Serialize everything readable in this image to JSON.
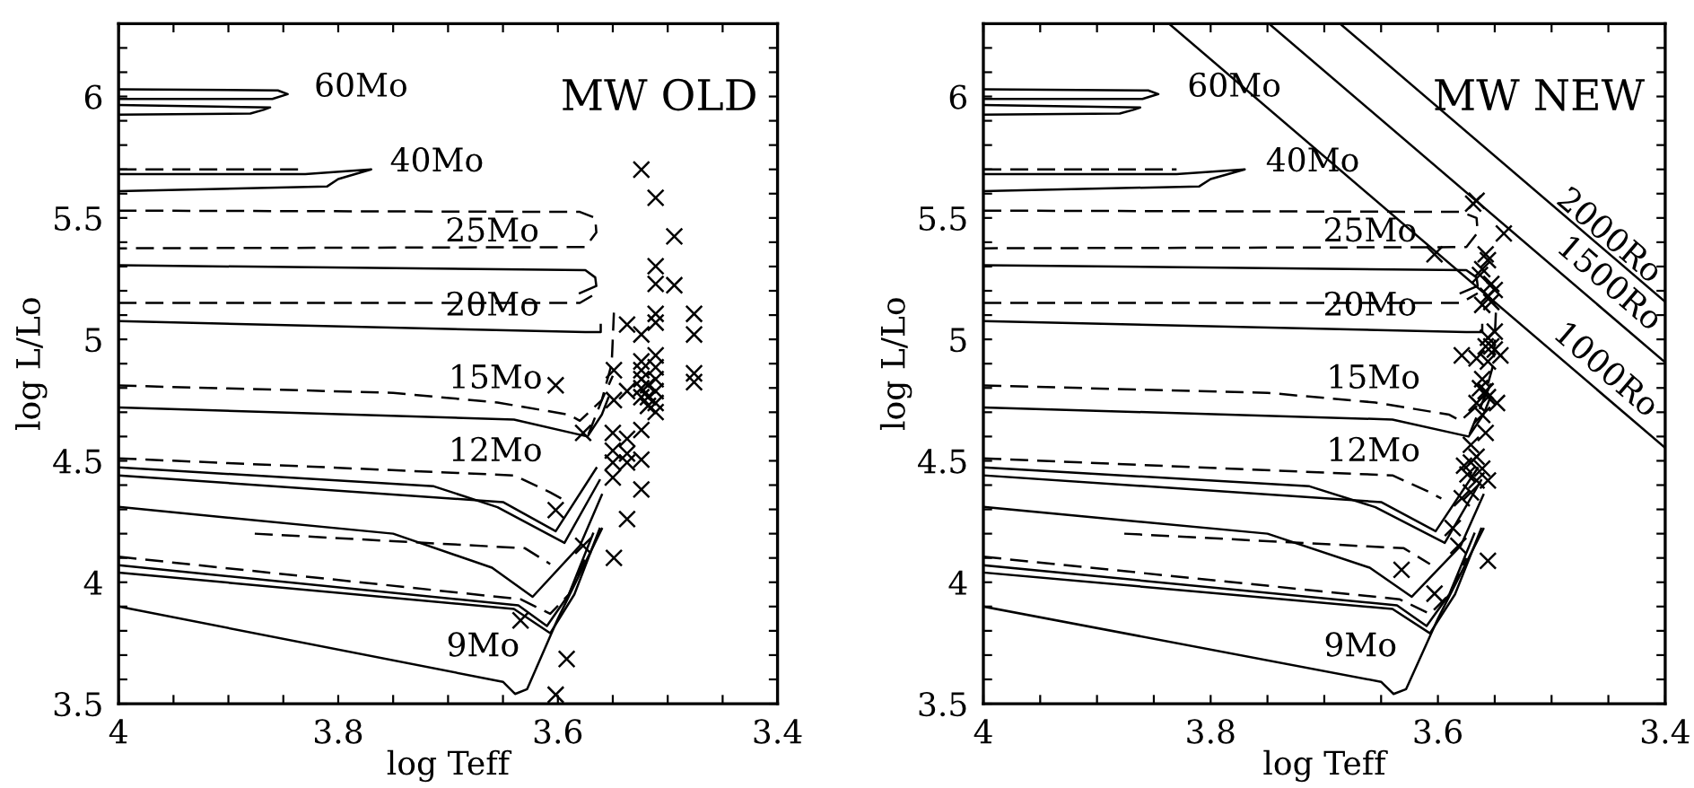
{
  "chart_data": [
    {
      "type": "line",
      "xlabel": "log Teff",
      "ylabel": "log L/Lo",
      "xlim": [
        4,
        3.4
      ],
      "ylim": [
        3.5,
        6.3
      ],
      "xticks": [
        4,
        {
          "value": 3.95,
          "label": null
        },
        {
          "value": 3.9,
          "label": null
        },
        {
          "value": 3.85,
          "label": null
        },
        3.8,
        {
          "value": 3.75,
          "label": null
        },
        {
          "value": 3.7,
          "label": null
        },
        {
          "value": 3.65,
          "label": null
        },
        3.6,
        {
          "value": 3.55,
          "label": null
        },
        {
          "value": 3.5,
          "label": null
        },
        {
          "value": 3.45,
          "label": null
        },
        3.4
      ],
      "yticks": [
        3.5,
        {
          "value": 3.6,
          "label": null
        },
        {
          "value": 3.7,
          "label": null
        },
        {
          "value": 3.8,
          "label": null
        },
        {
          "value": 3.9,
          "label": null
        },
        4,
        {
          "value": 4.1,
          "label": null
        },
        {
          "value": 4.2,
          "label": null
        },
        {
          "value": 4.3,
          "label": null
        },
        {
          "value": 4.4,
          "label": null
        },
        4.5,
        {
          "value": 4.6,
          "label": null
        },
        {
          "value": 4.7,
          "label": null
        },
        {
          "value": 4.8,
          "label": null
        },
        {
          "value": 4.9,
          "label": null
        },
        5,
        {
          "value": 5.1,
          "label": null
        },
        {
          "value": 5.2,
          "label": null
        },
        {
          "value": 5.3,
          "label": null
        },
        {
          "value": 5.4,
          "label": null
        },
        5.5,
        {
          "value": 5.6,
          "label": null
        },
        {
          "value": 5.7,
          "label": null
        },
        {
          "value": 5.8,
          "label": null
        },
        {
          "value": 5.9,
          "label": null
        },
        6,
        {
          "value": 6.1,
          "label": null
        },
        {
          "value": 6.2,
          "label": null
        }
      ],
      "grid": false,
      "legend": false,
      "annotations": [
        "MW OLD",
        "60Mo",
        "40Mo",
        "25Mo",
        "20Mo",
        "15Mo",
        "12Mo",
        "9Mo"
      ],
      "series": [
        {
          "type": "line",
          "line_style": "solid",
          "color": "#000000",
          "x": [
            4,
            3.855,
            3.846,
            3.86,
            4
          ],
          "values": [
            6.03,
            6.025,
            6.01,
            5.99,
            5.99
          ]
        },
        {
          "type": "line",
          "line_style": "solid",
          "color": "#000000",
          "x": [
            4,
            3.862,
            3.868,
            3.88,
            4
          ],
          "values": [
            5.965,
            5.955,
            5.945,
            5.93,
            5.925
          ]
        },
        {
          "type": "line",
          "line_style": "solid",
          "color": "#000000",
          "x": [
            4,
            3.83,
            3.77,
            3.8,
            3.81,
            4
          ],
          "values": [
            5.68,
            5.68,
            5.7,
            5.66,
            5.63,
            5.61
          ]
        },
        {
          "type": "line",
          "line_style": "dashed",
          "color": "#000000",
          "x": [
            4,
            3.83
          ],
          "values": [
            5.7,
            5.7
          ]
        },
        {
          "type": "line",
          "line_style": "dashed",
          "color": "#000000",
          "x": [
            4,
            3.58,
            3.566,
            3.565,
            3.575,
            4
          ],
          "values": [
            5.53,
            5.525,
            5.5,
            5.44,
            5.38,
            5.375
          ]
        },
        {
          "type": "line",
          "line_style": "solid",
          "color": "#000000",
          "x": [
            4,
            3.575,
            3.566,
            3.565,
            3.58
          ],
          "values": [
            5.305,
            5.285,
            5.255,
            5.22,
            5.19
          ]
        },
        {
          "type": "line",
          "line_style": "dashed",
          "color": "#000000",
          "x": [
            4,
            3.58,
            3.565
          ],
          "values": [
            5.15,
            5.15,
            5.19
          ]
        },
        {
          "type": "line",
          "line_style": "solid",
          "color": "#000000",
          "x": [
            4,
            3.575,
            3.561,
            3.561
          ],
          "values": [
            5.075,
            5.03,
            5.03,
            5.06
          ]
        },
        {
          "type": "line",
          "line_style": "dashed",
          "color": "#000000",
          "x": [
            3.549,
            3.551,
            3.56,
            3.573
          ],
          "values": [
            5.11,
            4.9,
            4.75,
            4.6
          ]
        },
        {
          "type": "line",
          "line_style": "dashed",
          "color": "#000000",
          "x": [
            4,
            3.75,
            3.655,
            3.59,
            3.58,
            3.56,
            3.55
          ],
          "values": [
            4.81,
            4.78,
            4.74,
            4.69,
            4.665,
            4.75,
            4.85
          ]
        },
        {
          "type": "line",
          "line_style": "solid",
          "color": "#000000",
          "x": [
            4,
            3.64,
            3.573,
            3.56,
            3.554
          ],
          "values": [
            4.72,
            4.67,
            4.6,
            4.69,
            4.76
          ]
        },
        {
          "type": "line",
          "line_style": "dashed",
          "color": "#000000",
          "x": [
            4,
            3.64,
            3.607,
            3.597
          ],
          "values": [
            4.51,
            4.44,
            4.37,
            4.345
          ]
        },
        {
          "type": "line",
          "line_style": "solid",
          "color": "#000000",
          "x": [
            4,
            3.713,
            3.655,
            3.594,
            3.562
          ],
          "values": [
            4.473,
            4.395,
            4.309,
            4.162,
            4.42
          ]
        },
        {
          "type": "line",
          "line_style": "solid",
          "color": "#000000",
          "x": [
            4,
            3.65,
            3.602,
            3.565
          ],
          "values": [
            4.44,
            4.33,
            4.21,
            4.47
          ]
        },
        {
          "type": "line",
          "line_style": "solid",
          "color": "#000000",
          "x": [
            4,
            3.75,
            3.66,
            3.623,
            3.58,
            3.56
          ],
          "values": [
            4.31,
            4.2,
            4.06,
            3.94,
            4.15,
            4.36
          ]
        },
        {
          "type": "line",
          "line_style": "dashed",
          "color": "#000000",
          "x": [
            3.876,
            3.63,
            3.607
          ],
          "values": [
            4.2,
            4.14,
            4.075
          ]
        },
        {
          "type": "line",
          "line_style": "dashed",
          "color": "#000000",
          "x": [
            4,
            3.634,
            3.607,
            3.59,
            3.575
          ],
          "values": [
            4.105,
            3.93,
            3.87,
            3.95,
            4.1
          ]
        },
        {
          "type": "line",
          "line_style": "solid",
          "color": "#000000",
          "x": [
            4,
            3.636,
            3.61,
            3.59,
            3.568
          ],
          "values": [
            4.07,
            3.905,
            3.82,
            3.95,
            4.2
          ]
        },
        {
          "type": "line",
          "line_style": "solid",
          "color": "#000000",
          "x": [
            4,
            3.64,
            3.607,
            3.585,
            3.562
          ],
          "values": [
            4.04,
            3.89,
            3.79,
            3.95,
            4.22
          ]
        },
        {
          "type": "line",
          "line_style": "solid",
          "color": "#000000",
          "x": [
            4,
            3.65,
            3.639,
            3.628,
            3.6,
            3.56
          ],
          "values": [
            3.9,
            3.59,
            3.54,
            3.56,
            3.85,
            4.22
          ]
        },
        {
          "type": "scatter",
          "marker": "cross",
          "color": "#000000",
          "x": [
            3.524,
            3.511,
            3.494,
            3.511,
            3.511,
            3.494,
            3.511,
            3.511,
            3.476,
            3.476,
            3.537,
            3.524,
            3.476,
            3.476,
            3.524,
            3.524,
            3.524,
            3.524,
            3.524,
            3.511,
            3.511,
            3.511,
            3.511,
            3.511,
            3.511,
            3.518,
            3.518,
            3.518,
            3.537,
            3.549,
            3.549,
            3.55,
            3.537,
            3.524,
            3.524,
            3.55,
            3.55,
            3.55,
            3.537,
            3.537,
            3.524,
            3.537,
            3.549,
            3.602,
            3.602,
            3.577,
            3.634,
            3.592,
            3.602,
            3.577
          ],
          "values": [
            5.699,
            5.583,
            5.424,
            5.301,
            5.228,
            5.223,
            5.105,
            5.069,
            5.105,
            5.02,
            5.061,
            5.02,
            4.86,
            4.824,
            4.909,
            4.873,
            4.836,
            4.799,
            4.762,
            4.934,
            4.885,
            4.836,
            4.787,
            4.738,
            4.701,
            4.811,
            4.762,
            4.726,
            4.787,
            4.873,
            4.75,
            4.615,
            4.591,
            4.627,
            4.505,
            4.542,
            4.493,
            4.431,
            4.493,
            4.53,
            4.382,
            4.26,
            4.1,
            4.811,
            4.297,
            4.15,
            3.843,
            3.684,
            3.537,
            4.615
          ]
        }
      ]
    },
    {
      "type": "line",
      "xlabel": "log Teff",
      "ylabel": "log L/Lo",
      "xlim": [
        4,
        3.4
      ],
      "ylim": [
        3.5,
        6.3
      ],
      "xticks": [
        4,
        {
          "value": 3.95,
          "label": null
        },
        {
          "value": 3.9,
          "label": null
        },
        {
          "value": 3.85,
          "label": null
        },
        3.8,
        {
          "value": 3.75,
          "label": null
        },
        {
          "value": 3.7,
          "label": null
        },
        {
          "value": 3.65,
          "label": null
        },
        3.6,
        {
          "value": 3.55,
          "label": null
        },
        {
          "value": 3.5,
          "label": null
        },
        {
          "value": 3.45,
          "label": null
        },
        3.4
      ],
      "yticks": [
        3.5,
        {
          "value": 3.6,
          "label": null
        },
        {
          "value": 3.7,
          "label": null
        },
        {
          "value": 3.8,
          "label": null
        },
        {
          "value": 3.9,
          "label": null
        },
        4,
        {
          "value": 4.1,
          "label": null
        },
        {
          "value": 4.2,
          "label": null
        },
        {
          "value": 4.3,
          "label": null
        },
        {
          "value": 4.4,
          "label": null
        },
        4.5,
        {
          "value": 4.6,
          "label": null
        },
        {
          "value": 4.7,
          "label": null
        },
        {
          "value": 4.8,
          "label": null
        },
        {
          "value": 4.9,
          "label": null
        },
        5,
        {
          "value": 5.1,
          "label": null
        },
        {
          "value": 5.2,
          "label": null
        },
        {
          "value": 5.3,
          "label": null
        },
        {
          "value": 5.4,
          "label": null
        },
        5.5,
        {
          "value": 5.6,
          "label": null
        },
        {
          "value": 5.7,
          "label": null
        },
        {
          "value": 5.8,
          "label": null
        },
        {
          "value": 5.9,
          "label": null
        },
        6,
        {
          "value": 6.1,
          "label": null
        },
        {
          "value": 6.2,
          "label": null
        }
      ],
      "grid": false,
      "legend": false,
      "annotations": [
        "MW NEW",
        "60Mo",
        "40Mo",
        "25Mo",
        "20Mo",
        "15Mo",
        "12Mo",
        "9Mo",
        "2000Ro",
        "1500Ro",
        "1000Ro"
      ],
      "series": [
        {
          "type": "line",
          "line_style": "solid",
          "color": "#000000",
          "x": [
            4,
            3.855,
            3.846,
            3.86,
            4
          ],
          "values": [
            6.03,
            6.025,
            6.01,
            5.99,
            5.99
          ]
        },
        {
          "type": "line",
          "line_style": "solid",
          "color": "#000000",
          "x": [
            4,
            3.862,
            3.868,
            3.88,
            4
          ],
          "values": [
            5.965,
            5.955,
            5.945,
            5.93,
            5.925
          ]
        },
        {
          "type": "line",
          "line_style": "solid",
          "color": "#000000",
          "x": [
            4,
            3.83,
            3.77,
            3.8,
            3.81,
            4
          ],
          "values": [
            5.68,
            5.68,
            5.7,
            5.66,
            5.63,
            5.61
          ]
        },
        {
          "type": "line",
          "line_style": "dashed",
          "color": "#000000",
          "x": [
            4,
            3.83
          ],
          "values": [
            5.7,
            5.7
          ]
        },
        {
          "type": "line",
          "line_style": "dashed",
          "color": "#000000",
          "x": [
            4,
            3.58,
            3.566,
            3.565,
            3.575,
            4
          ],
          "values": [
            5.53,
            5.525,
            5.5,
            5.44,
            5.38,
            5.375
          ]
        },
        {
          "type": "line",
          "line_style": "solid",
          "color": "#000000",
          "x": [
            4,
            3.575,
            3.566,
            3.565,
            3.58
          ],
          "values": [
            5.305,
            5.285,
            5.255,
            5.22,
            5.19
          ]
        },
        {
          "type": "line",
          "line_style": "dashed",
          "color": "#000000",
          "x": [
            4,
            3.58,
            3.565
          ],
          "values": [
            5.15,
            5.15,
            5.19
          ]
        },
        {
          "type": "line",
          "line_style": "solid",
          "color": "#000000",
          "x": [
            4,
            3.575,
            3.561,
            3.561
          ],
          "values": [
            5.075,
            5.03,
            5.03,
            5.06
          ]
        },
        {
          "type": "line",
          "line_style": "dashed",
          "color": "#000000",
          "x": [
            3.549,
            3.551,
            3.56,
            3.573
          ],
          "values": [
            5.11,
            4.9,
            4.75,
            4.6
          ]
        },
        {
          "type": "line",
          "line_style": "dashed",
          "color": "#000000",
          "x": [
            4,
            3.75,
            3.655,
            3.59,
            3.58,
            3.56,
            3.55
          ],
          "values": [
            4.81,
            4.78,
            4.74,
            4.69,
            4.665,
            4.75,
            4.85
          ]
        },
        {
          "type": "line",
          "line_style": "solid",
          "color": "#000000",
          "x": [
            4,
            3.64,
            3.573,
            3.56,
            3.554
          ],
          "values": [
            4.72,
            4.67,
            4.6,
            4.69,
            4.76
          ]
        },
        {
          "type": "line",
          "line_style": "dashed",
          "color": "#000000",
          "x": [
            4,
            3.64,
            3.607,
            3.597
          ],
          "values": [
            4.51,
            4.44,
            4.37,
            4.345
          ]
        },
        {
          "type": "line",
          "line_style": "solid",
          "color": "#000000",
          "x": [
            4,
            3.713,
            3.655,
            3.594,
            3.562
          ],
          "values": [
            4.473,
            4.395,
            4.309,
            4.162,
            4.42
          ]
        },
        {
          "type": "line",
          "line_style": "solid",
          "color": "#000000",
          "x": [
            4,
            3.65,
            3.602,
            3.565
          ],
          "values": [
            4.44,
            4.33,
            4.21,
            4.47
          ]
        },
        {
          "type": "line",
          "line_style": "solid",
          "color": "#000000",
          "x": [
            4,
            3.75,
            3.66,
            3.623,
            3.58,
            3.56
          ],
          "values": [
            4.31,
            4.2,
            4.06,
            3.94,
            4.15,
            4.36
          ]
        },
        {
          "type": "line",
          "line_style": "dashed",
          "color": "#000000",
          "x": [
            3.876,
            3.63,
            3.607
          ],
          "values": [
            4.2,
            4.14,
            4.075
          ]
        },
        {
          "type": "line",
          "line_style": "dashed",
          "color": "#000000",
          "x": [
            4,
            3.634,
            3.607,
            3.59,
            3.575
          ],
          "values": [
            4.105,
            3.93,
            3.87,
            3.95,
            4.1
          ]
        },
        {
          "type": "line",
          "line_style": "solid",
          "color": "#000000",
          "x": [
            4,
            3.636,
            3.61,
            3.59,
            3.568
          ],
          "values": [
            4.07,
            3.905,
            3.82,
            3.95,
            4.2
          ]
        },
        {
          "type": "line",
          "line_style": "solid",
          "color": "#000000",
          "x": [
            4,
            3.64,
            3.607,
            3.585,
            3.562
          ],
          "values": [
            4.04,
            3.89,
            3.79,
            3.95,
            4.22
          ]
        },
        {
          "type": "line",
          "line_style": "solid",
          "color": "#000000",
          "x": [
            4,
            3.65,
            3.639,
            3.628,
            3.6,
            3.56
          ],
          "values": [
            3.9,
            3.59,
            3.54,
            3.56,
            3.85,
            4.22
          ]
        },
        {
          "type": "line",
          "line_style": "solid",
          "color": "#000000",
          "x": [
            3.6862,
            3.4
          ],
          "values": [
            6.3,
            5.155
          ]
        },
        {
          "type": "line",
          "line_style": "solid",
          "color": "#000000",
          "x": [
            3.7487,
            3.4
          ],
          "values": [
            6.3,
            4.905
          ]
        },
        {
          "type": "line",
          "line_style": "solid",
          "color": "#000000",
          "x": [
            3.8367,
            3.4
          ],
          "values": [
            6.3,
            4.553
          ]
        },
        {
          "type": "scatter",
          "marker": "cross",
          "color": "#000000",
          "x": [
            3.569,
            3.566,
            3.542,
            3.603,
            3.558,
            3.556,
            3.561,
            3.563,
            3.553,
            3.55,
            3.556,
            3.553,
            3.561,
            3.55,
            3.556,
            3.558,
            3.553,
            3.55,
            3.545,
            3.566,
            3.579,
            3.556,
            3.561,
            3.563,
            3.558,
            3.556,
            3.548,
            3.566,
            3.561,
            3.558,
            3.571,
            3.566,
            3.577,
            3.574,
            3.566,
            3.556,
            3.571,
            3.579,
            3.587,
            3.582,
            3.556,
            3.632,
            3.603,
            3.571,
            3.561
          ],
          "values": [
            5.559,
            5.571,
            5.436,
            5.35,
            5.35,
            5.326,
            5.289,
            5.265,
            5.228,
            5.203,
            5.179,
            5.154,
            5.142,
            5.032,
            5.007,
            4.971,
            4.971,
            4.958,
            4.934,
            4.922,
            4.934,
            4.909,
            4.836,
            4.799,
            4.787,
            4.762,
            4.738,
            4.738,
            4.689,
            4.615,
            4.566,
            4.517,
            4.48,
            4.444,
            4.419,
            4.419,
            4.37,
            4.346,
            4.223,
            4.15,
            4.088,
            4.051,
            3.953,
            4.493,
            4.468
          ]
        }
      ]
    }
  ]
}
